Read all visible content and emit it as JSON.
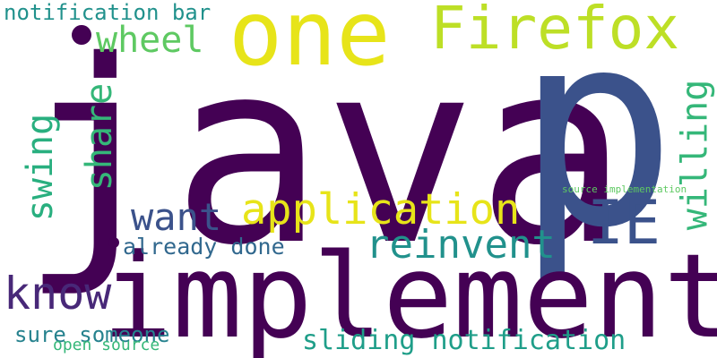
{
  "words": {
    "java": {
      "text": "java",
      "color": "#440154"
    },
    "p": {
      "text": "p",
      "color": "#3b528b"
    },
    "one": {
      "text": "one",
      "color": "#e7e419"
    },
    "firefox": {
      "text": "Firefox",
      "color": "#bddf26"
    },
    "wheel": {
      "text": "wheel",
      "color": "#5ec962"
    },
    "notification_bar": {
      "text": "notification bar",
      "color": "#21918c"
    },
    "share": {
      "text": "share",
      "color": "#35b779"
    },
    "swing": {
      "text": "swing",
      "color": "#29af7f"
    },
    "want": {
      "text": "want",
      "color": "#3b528b"
    },
    "application": {
      "text": "application",
      "color": "#e7e419"
    },
    "ie": {
      "text": "IE",
      "color": "#3b528b"
    },
    "willing": {
      "text": "willing",
      "color": "#35b779"
    },
    "reinvent": {
      "text": "reinvent",
      "color": "#21918c"
    },
    "already_done": {
      "text": "already done",
      "color": "#31688e"
    },
    "know": {
      "text": "know",
      "color": "#482878"
    },
    "implement": {
      "text": "implement",
      "color": "#440154"
    },
    "sure_someone": {
      "text": "sure someone",
      "color": "#26828e"
    },
    "open_source": {
      "text": "open source",
      "color": "#35b779"
    },
    "sliding_notification": {
      "text": "sliding notification",
      "color": "#1f9e89"
    },
    "source_implementation": {
      "text": "source implementation",
      "color": "#5ec962"
    }
  }
}
